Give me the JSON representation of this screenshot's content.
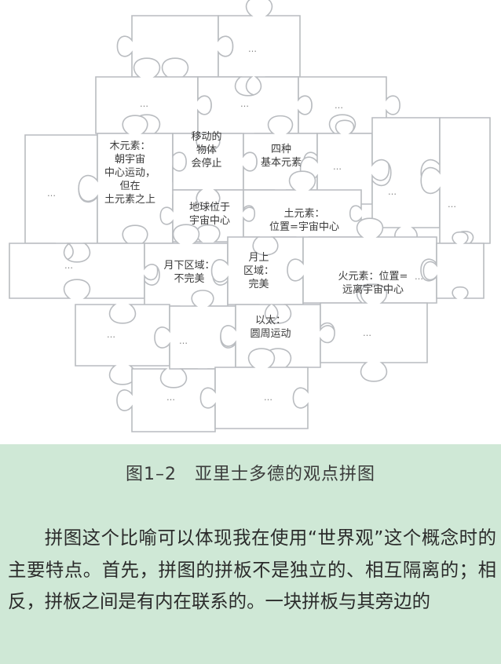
{
  "figure": {
    "labels": {
      "wood": "木元素：\n朝宇宙\n中心运动，\n但在\n土元素之上",
      "moving": "移动的\n物体\n会停止",
      "four": "四种\n基本元素",
      "earth_center": "地球位于\n宇宙中心",
      "earth_elem": "土元素：\n位置=宇宙中心",
      "sublunar": "月下区域：\n不完美",
      "superlunar": "月上\n区域：\n完美",
      "fire": "火元素：位置=\n远离宇宙中心",
      "ether": "以太：\n圆周运动"
    },
    "ellipsis": "…"
  },
  "caption": "图1–2　亚里士多德的观点拼图",
  "paragraph": "拼图这个比喻可以体现我在使用“世界观”这个概念时的主要特点。首先，拼图的拼板不是独立的、相互隔离的；相反，拼板之间是有内在联系的。一块拼板与其旁边的"
}
